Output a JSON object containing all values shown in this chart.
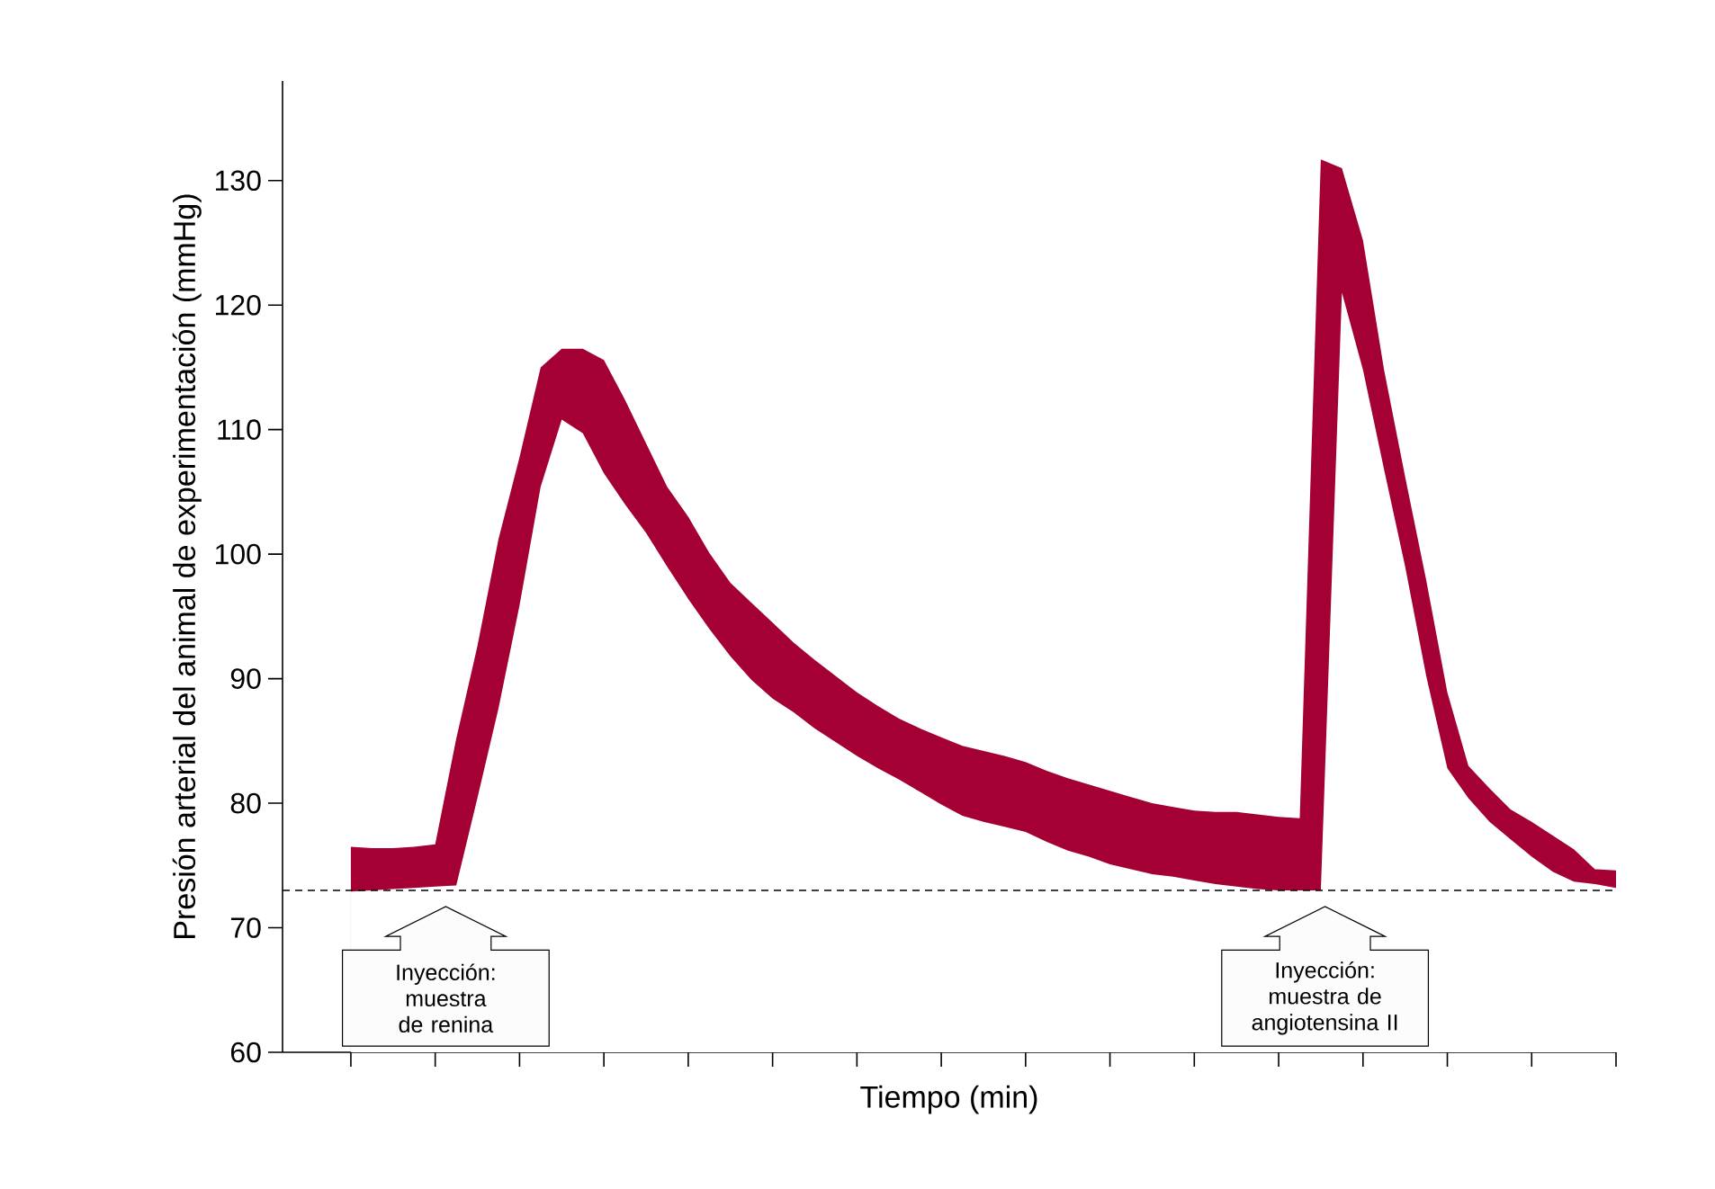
{
  "chart_data": {
    "type": "area",
    "ylabel": "Presión arterial del animal de experimentación (mmHg)",
    "xlabel": "Tiempo (min)",
    "categories": [
      null,
      null,
      null,
      null,
      null,
      null,
      null,
      null,
      null,
      null,
      null,
      null,
      null,
      null,
      null,
      null,
      null,
      null,
      null,
      null,
      null,
      null,
      null,
      null,
      null,
      null,
      null,
      null,
      null,
      null,
      null,
      null,
      null,
      null,
      null,
      null,
      null,
      null,
      null,
      null,
      null,
      null,
      null,
      null,
      null,
      null,
      null,
      null,
      null,
      null,
      null,
      null,
      null,
      null,
      null,
      null,
      null,
      null,
      null,
      null,
      null
    ],
    "ylim": [
      60,
      138
    ],
    "yticks": [
      60,
      70,
      80,
      90,
      100,
      110,
      120,
      130
    ],
    "tick_labels": "y",
    "series": [
      {
        "color": "#a50034",
        "values": [
          76.5,
          76.4,
          76.4,
          76.5,
          76.7,
          85.2,
          92.6,
          101.2,
          107.8,
          115.0,
          116.5,
          116.5,
          115.6,
          112.4,
          108.9,
          105.4,
          103.0,
          100.1,
          97.7,
          96.1,
          94.5,
          92.9,
          91.5,
          90.2,
          88.9,
          87.8,
          86.8,
          86.0,
          85.3,
          84.6,
          84.2,
          83.8,
          83.3,
          82.6,
          82.0,
          81.5,
          81.0,
          80.5,
          80.0,
          79.7,
          79.4,
          79.3,
          79.3,
          79.1,
          78.9,
          78.8,
          131.7,
          131.0,
          125.2,
          114.8,
          106.2,
          97.9,
          88.9,
          83.0,
          81.2,
          79.5,
          78.5,
          77.4,
          76.3,
          74.7,
          74.6
        ]
      },
      {
        "color": "#ffffff",
        "values": [
          72.9,
          73.0,
          73.1,
          73.2,
          73.3,
          73.4,
          80.4,
          87.6,
          95.9,
          105.4,
          110.8,
          109.7,
          106.5,
          104.0,
          101.7,
          99.0,
          96.4,
          94.0,
          91.8,
          89.9,
          88.4,
          87.3,
          86.0,
          84.9,
          83.8,
          82.8,
          81.9,
          80.9,
          79.9,
          79.0,
          78.5,
          78.1,
          77.7,
          76.9,
          76.2,
          75.7,
          75.1,
          74.7,
          74.3,
          74.1,
          73.8,
          73.5,
          73.3,
          73.1,
          73.0,
          73.0,
          73.0,
          121.0,
          114.8,
          106.8,
          99.0,
          90.2,
          82.8,
          80.4,
          78.5,
          77.1,
          75.7,
          74.5,
          73.7,
          73.5,
          73.2
        ]
      }
    ],
    "ref_lines": [
      {
        "axis": "y",
        "value": 73,
        "line_style": "dashed",
        "color": "#000000"
      }
    ],
    "annotations": [
      "Inyección: muestra de renina",
      "Inyección: muestra de angiotensina II"
    ]
  }
}
